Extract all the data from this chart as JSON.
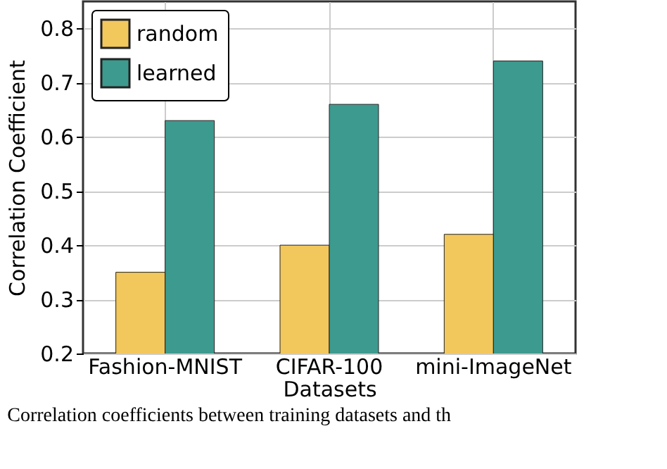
{
  "chart_data": {
    "type": "bar",
    "xlabel": "Datasets",
    "ylabel": "Correlation Coefficient",
    "categories": [
      "Fashion-MNIST",
      "CIFAR-100",
      "mini-ImageNet"
    ],
    "series": [
      {
        "name": "random",
        "color": "#f2c75c",
        "values": [
          0.35,
          0.4,
          0.42
        ]
      },
      {
        "name": "learned",
        "color": "#3d9a8e",
        "values": [
          0.63,
          0.66,
          0.74
        ]
      }
    ],
    "ylim": [
      0.2,
      0.85
    ],
    "yticks": [
      0.2,
      0.3,
      0.4,
      0.5,
      0.6,
      0.7,
      0.8
    ],
    "grid": true,
    "legend": "top left",
    "annotations": [
      "Correlation coefficients between training datasets and th"
    ]
  }
}
